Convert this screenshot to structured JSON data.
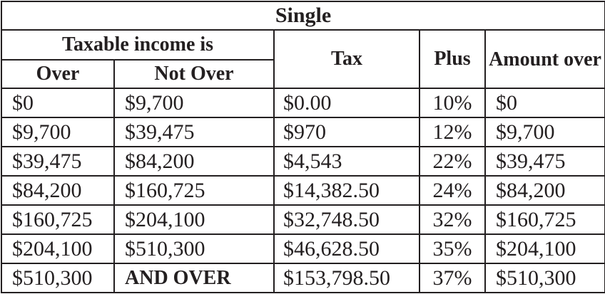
{
  "table": {
    "title": "Single",
    "taxable_income_header": "Taxable income is",
    "columns": {
      "over": "Over",
      "not_over": "Not Over",
      "tax": "Tax",
      "plus": "Plus",
      "amount_over": "Amount over"
    },
    "rows": [
      {
        "over": "$0",
        "not_over": "$9,700",
        "tax": "$0.00",
        "plus": "10%",
        "amount_over": "$0"
      },
      {
        "over": "$9,700",
        "not_over": "$39,475",
        "tax": "$970",
        "plus": "12%",
        "amount_over": "$9,700"
      },
      {
        "over": "$39,475",
        "not_over": "$84,200",
        "tax": "$4,543",
        "plus": "22%",
        "amount_over": "$39,475"
      },
      {
        "over": "$84,200",
        "not_over": "$160,725",
        "tax": "$14,382.50",
        "plus": "24%",
        "amount_over": "$84,200"
      },
      {
        "over": "$160,725",
        "not_over": "$204,100",
        "tax": "$32,748.50",
        "plus": "32%",
        "amount_over": "$160,725"
      },
      {
        "over": "$204,100",
        "not_over": "$510,300",
        "tax": "$46,628.50",
        "plus": "35%",
        "amount_over": "$204,100"
      },
      {
        "over": "$510,300",
        "not_over": "AND OVER",
        "tax": "$153,798.50",
        "plus": "37%",
        "amount_over": "$510,300"
      }
    ]
  },
  "colors": {
    "text": "#231f20",
    "border": "#231f20",
    "background": "#ffffff"
  }
}
